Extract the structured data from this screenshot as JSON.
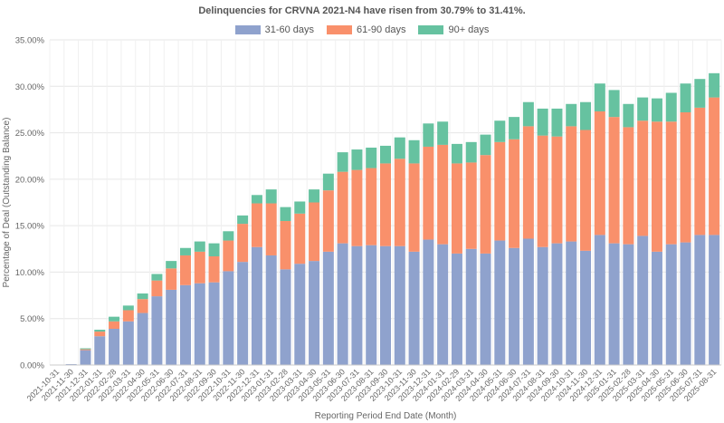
{
  "chart_data": {
    "type": "bar",
    "stacked": true,
    "title": "Delinquencies for CRVNA 2021-N4 have risen from 30.79% to 31.41%.",
    "xlabel": "Reporting Period End Date (Month)",
    "ylabel": "Percentage of Deal (Outstanding Balance)",
    "ylim": [
      0,
      35
    ],
    "yticks": [
      "0.00%",
      "5.00%",
      "10.00%",
      "15.00%",
      "20.00%",
      "25.00%",
      "30.00%",
      "35.00%"
    ],
    "grid": true,
    "legend_position": "top-center",
    "categories": [
      "2021-10-31",
      "2021-11-30",
      "2021-12-31",
      "2022-01-31",
      "2022-02-28",
      "2022-03-31",
      "2022-04-30",
      "2022-05-31",
      "2022-06-30",
      "2022-07-31",
      "2022-08-31",
      "2022-09-30",
      "2022-10-31",
      "2022-11-30",
      "2022-12-31",
      "2023-01-31",
      "2023-02-28",
      "2023-03-31",
      "2023-04-30",
      "2023-05-31",
      "2023-06-30",
      "2023-07-31",
      "2023-08-31",
      "2023-09-30",
      "2023-10-31",
      "2023-11-30",
      "2023-12-31",
      "2024-01-31",
      "2024-02-29",
      "2024-03-31",
      "2024-04-30",
      "2024-05-31",
      "2024-06-30",
      "2024-07-31",
      "2024-08-31",
      "2024-09-30",
      "2024-10-31",
      "2024-11-30",
      "2024-12-31",
      "2025-01-31",
      "2025-02-28",
      "2025-03-31",
      "2025-04-30",
      "2025-05-31",
      "2025-06-30",
      "2025-07-31",
      "2025-08-31"
    ],
    "series": [
      {
        "name": "31-60 days",
        "color": "#8fa2cd",
        "values": [
          0.05,
          0.1,
          1.6,
          3.1,
          3.9,
          4.7,
          5.6,
          7.4,
          8.1,
          8.6,
          8.8,
          8.9,
          10.1,
          11.1,
          12.7,
          11.8,
          10.3,
          10.9,
          11.2,
          12.2,
          13.1,
          12.8,
          12.9,
          12.8,
          12.8,
          12.2,
          13.5,
          13.0,
          12.0,
          12.5,
          12.0,
          13.4,
          12.6,
          13.6,
          12.7,
          13.1,
          13.3,
          12.3,
          14.0,
          13.1,
          13.0,
          13.9,
          12.2,
          13.0,
          13.2,
          14.0,
          14.0
        ]
      },
      {
        "name": "61-90 days",
        "color": "#f9906b",
        "values": [
          0.0,
          0.0,
          0.1,
          0.5,
          0.8,
          1.2,
          1.5,
          1.7,
          2.3,
          3.2,
          3.4,
          2.8,
          3.3,
          4.1,
          4.7,
          5.6,
          5.2,
          5.4,
          6.3,
          6.6,
          7.7,
          8.2,
          8.3,
          8.9,
          9.4,
          9.5,
          10.0,
          10.7,
          9.7,
          9.3,
          10.6,
          10.6,
          11.7,
          12.1,
          12.0,
          11.5,
          12.4,
          13.0,
          13.3,
          13.6,
          12.6,
          12.4,
          14.0,
          13.2,
          14.0,
          13.7,
          14.8
        ]
      },
      {
        "name": "90+ days",
        "color": "#66c2a0",
        "values": [
          0.0,
          0.0,
          0.1,
          0.2,
          0.5,
          0.5,
          0.6,
          0.7,
          0.8,
          0.8,
          1.1,
          1.4,
          1.0,
          0.9,
          0.9,
          1.5,
          1.5,
          1.3,
          1.4,
          1.8,
          2.1,
          2.2,
          2.2,
          1.9,
          2.3,
          2.5,
          2.5,
          2.5,
          2.1,
          2.2,
          2.2,
          2.3,
          2.4,
          2.6,
          2.9,
          3.0,
          2.4,
          3.0,
          3.0,
          2.9,
          2.5,
          2.5,
          2.5,
          3.1,
          3.1,
          3.09,
          2.61
        ]
      }
    ]
  }
}
